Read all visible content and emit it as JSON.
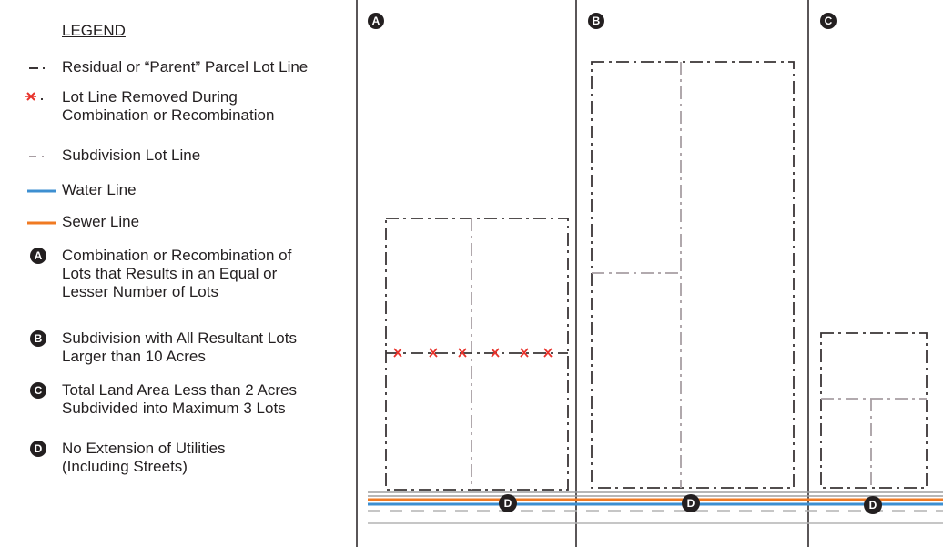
{
  "legend": {
    "title": "LEGEND",
    "items": [
      {
        "symbol": "parent-lot-line",
        "lines": [
          "Residual or “Parent” Parcel Lot Line"
        ]
      },
      {
        "symbol": "lot-line-removed",
        "lines": [
          "Lot Line Removed During",
          "Combination or Recombination"
        ]
      },
      {
        "symbol": "subdivision-lot-line",
        "lines": [
          "Subdivision Lot Line"
        ]
      },
      {
        "symbol": "water-line",
        "lines": [
          "Water Line"
        ]
      },
      {
        "symbol": "sewer-line",
        "lines": [
          "Sewer Line"
        ]
      },
      {
        "symbol": "badge",
        "badge": "A",
        "lines": [
          "Combination or Recombination of",
          "Lots that Results in an Equal or",
          "Lesser Number of Lots"
        ]
      },
      {
        "symbol": "badge",
        "badge": "B",
        "lines": [
          "Subdivision with All Resultant Lots",
          "Larger than 10 Acres"
        ]
      },
      {
        "symbol": "badge",
        "badge": "C",
        "lines": [
          "Total Land Area Less than 2 Acres",
          "Subdivided into Maximum 3 Lots"
        ]
      },
      {
        "symbol": "badge",
        "badge": "D",
        "lines": [
          "No Extension of Utilities",
          "(Including Streets)"
        ]
      }
    ]
  },
  "panels": [
    {
      "badge": "A"
    },
    {
      "badge": "B"
    },
    {
      "badge": "C"
    }
  ],
  "road_badge": "D",
  "colors": {
    "ink": "#231f20",
    "parent_line": "#3a3536",
    "subdivision_line": "#a89ea3",
    "removed_x": "#e8322b",
    "water": "#3d8fd1",
    "sewer": "#f07a22",
    "road": "#9d9d9d"
  }
}
